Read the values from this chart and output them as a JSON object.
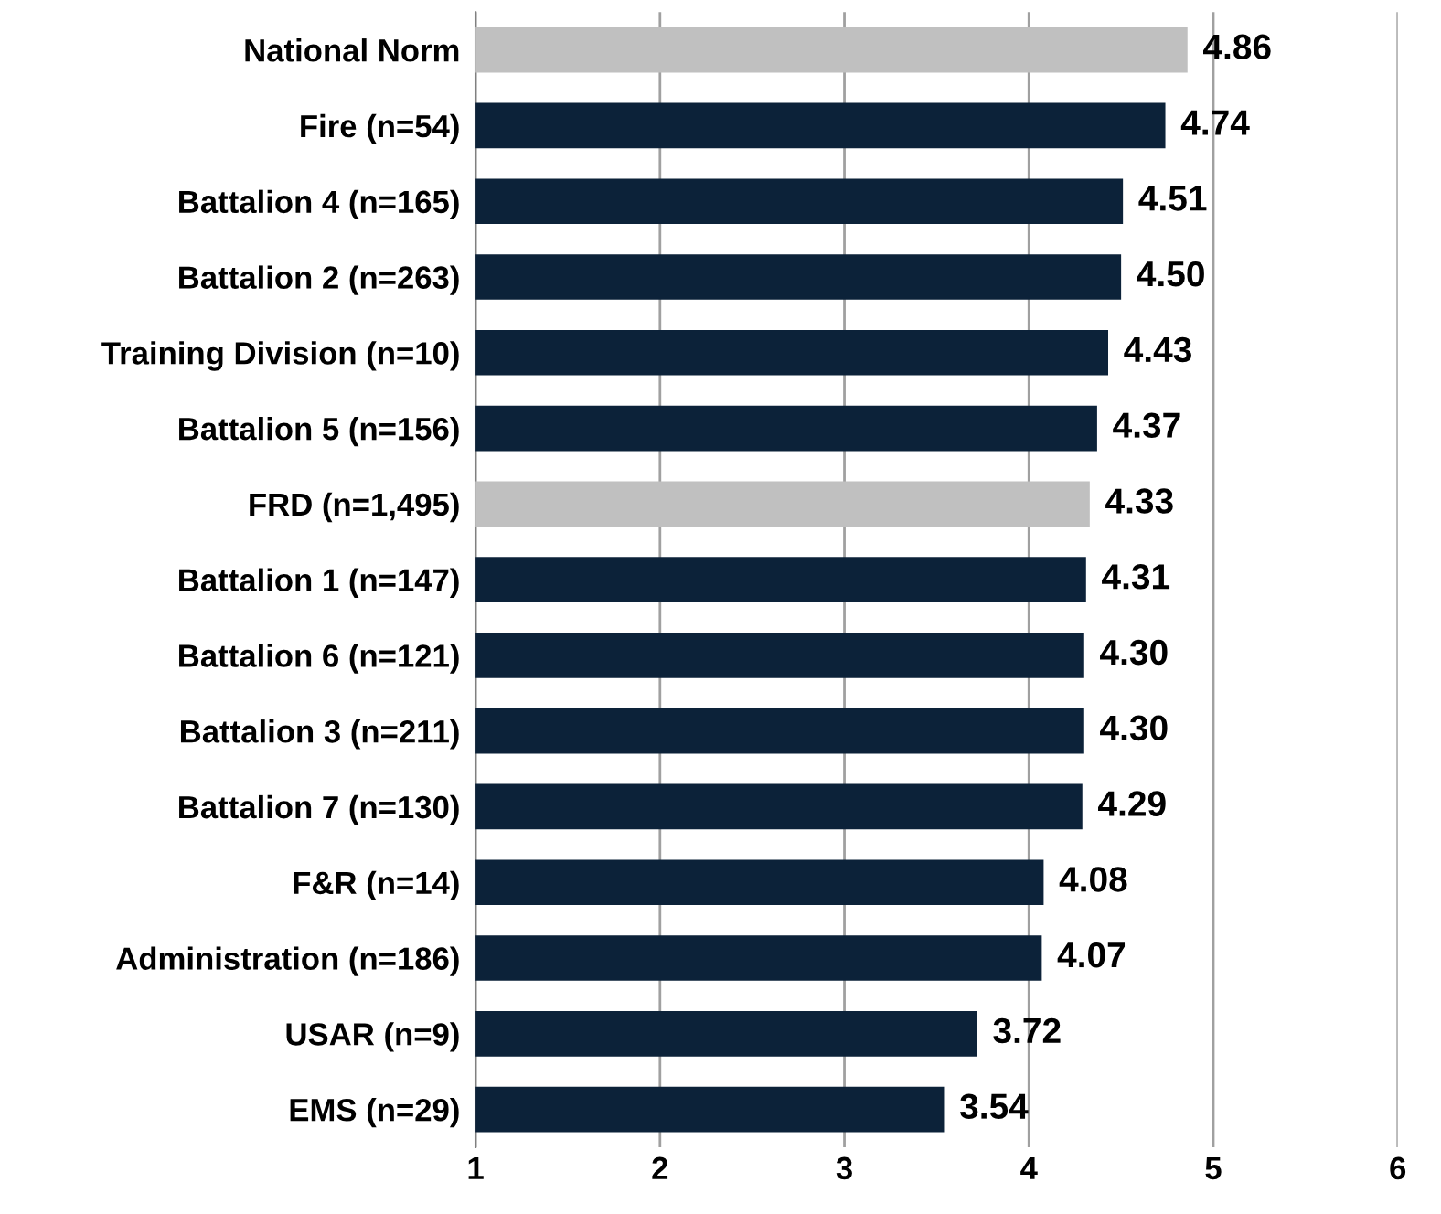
{
  "chart_data": {
    "type": "bar",
    "orientation": "horizontal",
    "categories": [
      "National Norm",
      "Fire (n=54)",
      "Battalion 4 (n=165)",
      "Battalion 2 (n=263)",
      "Training Division (n=10)",
      "Battalion 5 (n=156)",
      "FRD (n=1,495)",
      "Battalion 1 (n=147)",
      "Battalion 6 (n=121)",
      "Battalion 3 (n=211)",
      "Battalion 7 (n=130)",
      "F&R (n=14)",
      "Administration (n=186)",
      "USAR (n=9)",
      "EMS (n=29)"
    ],
    "values": [
      4.86,
      4.74,
      4.51,
      4.5,
      4.43,
      4.37,
      4.33,
      4.31,
      4.3,
      4.3,
      4.29,
      4.08,
      4.07,
      3.72,
      3.54
    ],
    "value_labels": [
      "4.86",
      "4.74",
      "4.51",
      "4.50",
      "4.43",
      "4.37",
      "4.33",
      "4.31",
      "4.30",
      "4.30",
      "4.29",
      "4.08",
      "4.07",
      "3.72",
      "3.54"
    ],
    "colors": [
      "#c0c0c0",
      "#0c2239",
      "#0c2239",
      "#0c2239",
      "#0c2239",
      "#0c2239",
      "#c0c0c0",
      "#0c2239",
      "#0c2239",
      "#0c2239",
      "#0c2239",
      "#0c2239",
      "#0c2239",
      "#0c2239",
      "#0c2239"
    ],
    "xlim": [
      1,
      6
    ],
    "xticks": [
      1,
      2,
      3,
      4,
      5,
      6
    ],
    "grid": "x"
  }
}
